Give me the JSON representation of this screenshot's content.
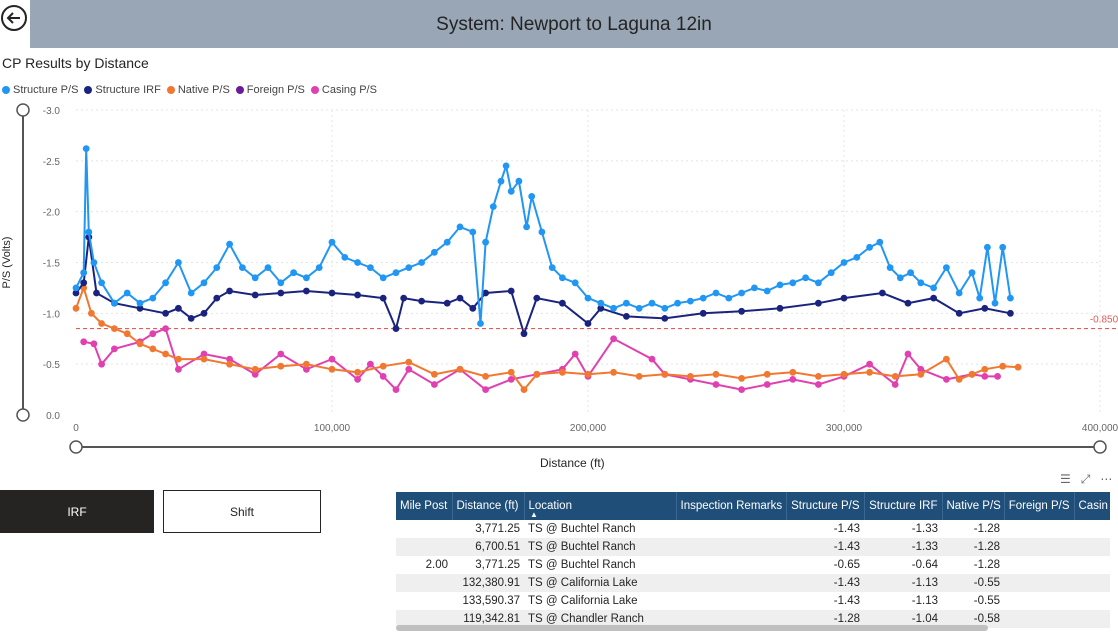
{
  "header": {
    "title": "System: Newport to Laguna 12in"
  },
  "chart_data": {
    "type": "line",
    "title": "CP Results by Distance",
    "xlabel": "Distance (ft)",
    "ylabel": "P/S (Volts)",
    "xlim": [
      0,
      400000
    ],
    "ylim": [
      0.0,
      -3.0
    ],
    "x_ticks": [
      "0",
      "100,000",
      "200,000",
      "300,000",
      "400,000"
    ],
    "y_ticks": [
      "0.0",
      "-0.5",
      "-1.0",
      "-1.5",
      "-2.0",
      "-2.5",
      "-3.0"
    ],
    "reference_line": {
      "value": -0.85,
      "label": "-0.850",
      "color": "#e35b5b"
    },
    "legend_position": "top-left",
    "series": [
      {
        "name": "Structure P/S",
        "color": "#2196f3",
        "points": [
          [
            0,
            -1.25
          ],
          [
            3000,
            -1.4
          ],
          [
            4000,
            -2.62
          ],
          [
            5000,
            -1.8
          ],
          [
            7000,
            -1.5
          ],
          [
            10000,
            -1.3
          ],
          [
            15000,
            -1.1
          ],
          [
            20000,
            -1.2
          ],
          [
            25000,
            -1.1
          ],
          [
            30000,
            -1.15
          ],
          [
            35000,
            -1.3
          ],
          [
            40000,
            -1.5
          ],
          [
            45000,
            -1.2
          ],
          [
            50000,
            -1.3
          ],
          [
            55000,
            -1.45
          ],
          [
            60000,
            -1.68
          ],
          [
            65000,
            -1.45
          ],
          [
            70000,
            -1.35
          ],
          [
            75000,
            -1.45
          ],
          [
            80000,
            -1.3
          ],
          [
            85000,
            -1.4
          ],
          [
            90000,
            -1.35
          ],
          [
            95000,
            -1.45
          ],
          [
            100000,
            -1.7
          ],
          [
            105000,
            -1.55
          ],
          [
            110000,
            -1.5
          ],
          [
            115000,
            -1.45
          ],
          [
            120000,
            -1.35
          ],
          [
            125000,
            -1.4
          ],
          [
            130000,
            -1.45
          ],
          [
            135000,
            -1.5
          ],
          [
            140000,
            -1.6
          ],
          [
            145000,
            -1.7
          ],
          [
            150000,
            -1.85
          ],
          [
            155000,
            -1.8
          ],
          [
            158000,
            -0.9
          ],
          [
            160000,
            -1.7
          ],
          [
            163000,
            -2.05
          ],
          [
            166000,
            -2.3
          ],
          [
            168000,
            -2.45
          ],
          [
            170000,
            -2.2
          ],
          [
            173000,
            -2.3
          ],
          [
            176000,
            -1.85
          ],
          [
            178000,
            -2.15
          ],
          [
            182000,
            -1.8
          ],
          [
            186000,
            -1.45
          ],
          [
            190000,
            -1.35
          ],
          [
            195000,
            -1.3
          ],
          [
            200000,
            -1.15
          ],
          [
            205000,
            -1.1
          ],
          [
            210000,
            -1.05
          ],
          [
            215000,
            -1.1
          ],
          [
            220000,
            -1.05
          ],
          [
            225000,
            -1.1
          ],
          [
            230000,
            -1.05
          ],
          [
            235000,
            -1.1
          ],
          [
            240000,
            -1.12
          ],
          [
            245000,
            -1.15
          ],
          [
            250000,
            -1.2
          ],
          [
            255000,
            -1.15
          ],
          [
            260000,
            -1.2
          ],
          [
            265000,
            -1.25
          ],
          [
            270000,
            -1.22
          ],
          [
            275000,
            -1.28
          ],
          [
            280000,
            -1.3
          ],
          [
            285000,
            -1.35
          ],
          [
            290000,
            -1.3
          ],
          [
            295000,
            -1.4
          ],
          [
            300000,
            -1.5
          ],
          [
            305000,
            -1.55
          ],
          [
            310000,
            -1.65
          ],
          [
            314000,
            -1.7
          ],
          [
            318000,
            -1.45
          ],
          [
            322000,
            -1.35
          ],
          [
            326000,
            -1.4
          ],
          [
            330000,
            -1.3
          ],
          [
            335000,
            -1.25
          ],
          [
            340000,
            -1.45
          ],
          [
            345000,
            -1.2
          ],
          [
            350000,
            -1.4
          ],
          [
            353000,
            -1.15
          ],
          [
            356000,
            -1.65
          ],
          [
            359000,
            -1.1
          ],
          [
            362000,
            -1.65
          ],
          [
            365000,
            -1.15
          ]
        ]
      },
      {
        "name": "Structure IRF",
        "color": "#1a237e",
        "points": [
          [
            0,
            -1.2
          ],
          [
            3000,
            -1.3
          ],
          [
            5000,
            -1.75
          ],
          [
            8000,
            -1.2
          ],
          [
            15000,
            -1.1
          ],
          [
            25000,
            -1.05
          ],
          [
            35000,
            -1.0
          ],
          [
            40000,
            -1.05
          ],
          [
            45000,
            -0.95
          ],
          [
            50000,
            -1.0
          ],
          [
            55000,
            -1.15
          ],
          [
            60000,
            -1.22
          ],
          [
            70000,
            -1.18
          ],
          [
            80000,
            -1.2
          ],
          [
            90000,
            -1.22
          ],
          [
            100000,
            -1.2
          ],
          [
            110000,
            -1.18
          ],
          [
            120000,
            -1.15
          ],
          [
            125000,
            -0.85
          ],
          [
            128000,
            -1.15
          ],
          [
            135000,
            -1.12
          ],
          [
            145000,
            -1.1
          ],
          [
            150000,
            -1.15
          ],
          [
            155000,
            -1.05
          ],
          [
            160000,
            -1.2
          ],
          [
            170000,
            -1.22
          ],
          [
            175000,
            -0.8
          ],
          [
            180000,
            -1.15
          ],
          [
            190000,
            -1.1
          ],
          [
            200000,
            -0.9
          ],
          [
            205000,
            -1.05
          ],
          [
            215000,
            -0.97
          ],
          [
            230000,
            -0.95
          ],
          [
            245000,
            -1.0
          ],
          [
            260000,
            -1.02
          ],
          [
            275000,
            -1.05
          ],
          [
            290000,
            -1.1
          ],
          [
            300000,
            -1.15
          ],
          [
            315000,
            -1.2
          ],
          [
            325000,
            -1.1
          ],
          [
            335000,
            -1.15
          ],
          [
            345000,
            -1.0
          ],
          [
            355000,
            -1.05
          ],
          [
            365000,
            -1.0
          ]
        ]
      },
      {
        "name": "Native P/S",
        "color": "#f07830",
        "points": [
          [
            0,
            -1.05
          ],
          [
            3000,
            -1.25
          ],
          [
            6000,
            -1.0
          ],
          [
            10000,
            -0.9
          ],
          [
            15000,
            -0.85
          ],
          [
            20000,
            -0.8
          ],
          [
            25000,
            -0.7
          ],
          [
            30000,
            -0.65
          ],
          [
            35000,
            -0.6
          ],
          [
            40000,
            -0.55
          ],
          [
            50000,
            -0.55
          ],
          [
            60000,
            -0.5
          ],
          [
            70000,
            -0.45
          ],
          [
            80000,
            -0.48
          ],
          [
            90000,
            -0.5
          ],
          [
            100000,
            -0.45
          ],
          [
            110000,
            -0.42
          ],
          [
            120000,
            -0.48
          ],
          [
            130000,
            -0.52
          ],
          [
            140000,
            -0.4
          ],
          [
            150000,
            -0.45
          ],
          [
            160000,
            -0.38
          ],
          [
            170000,
            -0.42
          ],
          [
            175000,
            -0.25
          ],
          [
            180000,
            -0.4
          ],
          [
            190000,
            -0.42
          ],
          [
            200000,
            -0.4
          ],
          [
            210000,
            -0.42
          ],
          [
            220000,
            -0.38
          ],
          [
            230000,
            -0.4
          ],
          [
            240000,
            -0.38
          ],
          [
            250000,
            -0.4
          ],
          [
            260000,
            -0.36
          ],
          [
            270000,
            -0.4
          ],
          [
            280000,
            -0.42
          ],
          [
            290000,
            -0.38
          ],
          [
            300000,
            -0.4
          ],
          [
            310000,
            -0.42
          ],
          [
            320000,
            -0.38
          ],
          [
            330000,
            -0.4
          ],
          [
            340000,
            -0.55
          ],
          [
            345000,
            -0.35
          ],
          [
            350000,
            -0.4
          ],
          [
            355000,
            -0.45
          ],
          [
            362000,
            -0.48
          ],
          [
            368000,
            -0.47
          ]
        ]
      },
      {
        "name": "Foreign P/S",
        "color": "#6a1b9a",
        "points": []
      },
      {
        "name": "Casing P/S",
        "color": "#e040b0",
        "points": [
          [
            3000,
            -0.72
          ],
          [
            7000,
            -0.7
          ],
          [
            10000,
            -0.5
          ],
          [
            15000,
            -0.65
          ],
          [
            25000,
            -0.72
          ],
          [
            30000,
            -0.8
          ],
          [
            35000,
            -0.85
          ],
          [
            40000,
            -0.45
          ],
          [
            50000,
            -0.6
          ],
          [
            60000,
            -0.55
          ],
          [
            70000,
            -0.4
          ],
          [
            80000,
            -0.6
          ],
          [
            90000,
            -0.45
          ],
          [
            100000,
            -0.55
          ],
          [
            110000,
            -0.35
          ],
          [
            115000,
            -0.5
          ],
          [
            120000,
            -0.38
          ],
          [
            125000,
            -0.25
          ],
          [
            130000,
            -0.45
          ],
          [
            140000,
            -0.3
          ],
          [
            150000,
            -0.45
          ],
          [
            160000,
            -0.25
          ],
          [
            170000,
            -0.35
          ],
          [
            180000,
            -0.4
          ],
          [
            190000,
            -0.45
          ],
          [
            195000,
            -0.6
          ],
          [
            200000,
            -0.38
          ],
          [
            210000,
            -0.75
          ],
          [
            225000,
            -0.55
          ],
          [
            230000,
            -0.4
          ],
          [
            240000,
            -0.35
          ],
          [
            250000,
            -0.3
          ],
          [
            260000,
            -0.25
          ],
          [
            270000,
            -0.3
          ],
          [
            280000,
            -0.35
          ],
          [
            290000,
            -0.3
          ],
          [
            300000,
            -0.38
          ],
          [
            310000,
            -0.5
          ],
          [
            320000,
            -0.3
          ],
          [
            325000,
            -0.6
          ],
          [
            330000,
            -0.45
          ],
          [
            340000,
            -0.35
          ],
          [
            350000,
            -0.4
          ],
          [
            355000,
            -0.38
          ],
          [
            360000,
            -0.38
          ]
        ]
      }
    ]
  },
  "buttons": {
    "irf": "IRF",
    "shift": "Shift"
  },
  "table": {
    "columns": [
      "Mile Post",
      "Distance (ft)",
      "Location",
      "Inspection Remarks",
      "Structure P/S",
      "Structure IRF",
      "Native P/S",
      "Foreign P/S",
      "Casin"
    ],
    "rows": [
      [
        "",
        "3,771.25",
        "TS @ Buchtel Ranch",
        "",
        "-1.43",
        "-1.33",
        "-1.28",
        "",
        ""
      ],
      [
        "",
        "6,700.51",
        "TS @ Buchtel Ranch",
        "",
        "-1.43",
        "-1.33",
        "-1.28",
        "",
        ""
      ],
      [
        "2.00",
        "3,771.25",
        "TS @ Buchtel Ranch",
        "",
        "-0.65",
        "-0.64",
        "-1.28",
        "",
        ""
      ],
      [
        "",
        "132,380.91",
        "TS @ California Lake",
        "",
        "-1.43",
        "-1.13",
        "-0.55",
        "",
        ""
      ],
      [
        "",
        "133,590.37",
        "TS @ California Lake",
        "",
        "-1.43",
        "-1.13",
        "-0.55",
        "",
        ""
      ],
      [
        "",
        "119,342.81",
        "TS @ Chandler Ranch",
        "",
        "-1.28",
        "-1.04",
        "-0.58",
        "",
        ""
      ]
    ]
  }
}
